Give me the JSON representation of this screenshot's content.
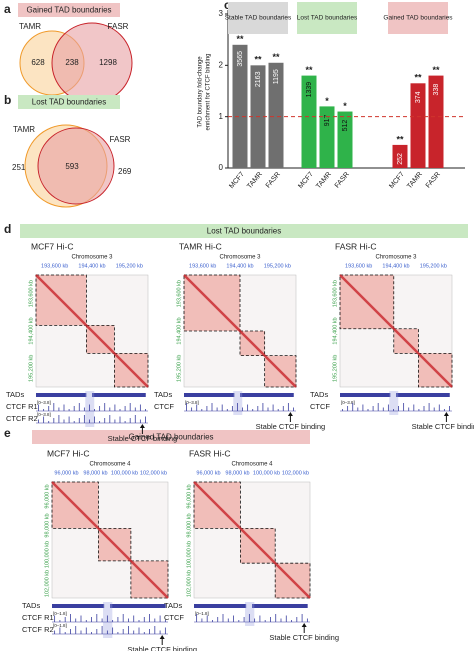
{
  "panels": {
    "a": {
      "label": "a",
      "banner": "Gained TAD boundaries",
      "venn": {
        "left": "TAMR",
        "right": "FASR",
        "left_only": 628,
        "both": 238,
        "right_only": 1298
      }
    },
    "b": {
      "label": "b",
      "banner": "Lost TAD boundaries",
      "venn": {
        "left": "TAMR",
        "right": "FASR",
        "left_only": 251,
        "both": 593,
        "right_only": 269
      }
    },
    "c": {
      "label": "c"
    },
    "d": {
      "label": "d",
      "banner": "Lost TAD boundaries",
      "maps": [
        {
          "title": "MCF7 Hi-C",
          "chromosome": "Chromosome 3",
          "ticks": [
            "193,600 kb",
            "194,400 kb",
            "195,200 kb"
          ],
          "tracks": [
            "TADs",
            "CTCF R1",
            "CTCF R2"
          ],
          "scale": "[0–3.8]",
          "annotation": "Stable CTCF binding"
        },
        {
          "title": "TAMR Hi-C",
          "chromosome": "Chromosome 3",
          "ticks": [
            "193,600 kb",
            "194,400 kb",
            "195,200 kb"
          ],
          "tracks": [
            "TADs",
            "CTCF"
          ],
          "scale": "[0–3.8]",
          "annotation": "Stable CTCF binding"
        },
        {
          "title": "FASR Hi-C",
          "chromosome": "Chromosome 3",
          "ticks": [
            "193,600 kb",
            "194,400 kb",
            "195,200 kb"
          ],
          "tracks": [
            "TADs",
            "CTCF"
          ],
          "scale": "[0–3.8]",
          "annotation": "Stable CTCF binding"
        }
      ]
    },
    "e": {
      "label": "e",
      "banner": "Gained TAD boundaries",
      "maps": [
        {
          "title": "MCF7 Hi-C",
          "chromosome": "Chromosome 4",
          "ticks": [
            "96,000 kb",
            "98,000 kb",
            "100,000 kb",
            "102,000 kb"
          ],
          "tracks": [
            "TADs",
            "CTCF R1",
            "CTCF R2"
          ],
          "scale": "[0–1.8]",
          "annotation": "Stable CTCF binding"
        },
        {
          "title": "FASR Hi-C",
          "chromosome": "Chromosome 4",
          "ticks": [
            "96,000 kb",
            "98,000 kb",
            "100,000 kb",
            "102,000 kb"
          ],
          "tracks": [
            "TADs",
            "CTCF"
          ],
          "scale": "[0–1.8]",
          "annotation": "Stable CTCF binding"
        }
      ]
    }
  },
  "chart_data": {
    "type": "bar",
    "y_label": [
      "TAD boundary fold-change",
      "enrichment for CTCF binding"
    ],
    "ylim": [
      0,
      3
    ],
    "yticks": [
      0,
      1,
      2,
      3
    ],
    "reference_line": 1,
    "reference_color": "#d0342c",
    "groups": [
      {
        "name": "Stable TAD boundaries",
        "color": "#6f6f6f",
        "header_color": "#d9d9d9",
        "categories": [
          "MCF7",
          "TAMR",
          "FASR"
        ],
        "values": [
          2.4,
          2.0,
          2.05
        ],
        "counts": [
          3565,
          2163,
          1195
        ],
        "significance": [
          "**",
          "**",
          "**"
        ]
      },
      {
        "name": "Lost TAD boundaries",
        "color": "#2fb34a",
        "header_color": "#c9e8c2",
        "categories": [
          "MCF7",
          "TAMR",
          "FASR"
        ],
        "values": [
          1.8,
          1.2,
          1.1
        ],
        "counts": [
          1339,
          917,
          512
        ],
        "significance": [
          "**",
          "*",
          "*"
        ]
      },
      {
        "name": "Gained TAD boundaries",
        "color": "#c8242b",
        "header_color": "#f0c4c4",
        "categories": [
          "MCF7",
          "TAMR",
          "FASR"
        ],
        "values": [
          0.45,
          1.65,
          1.8
        ],
        "counts": [
          252,
          374,
          338
        ],
        "significance": [
          "**",
          "**",
          "**"
        ]
      }
    ]
  }
}
